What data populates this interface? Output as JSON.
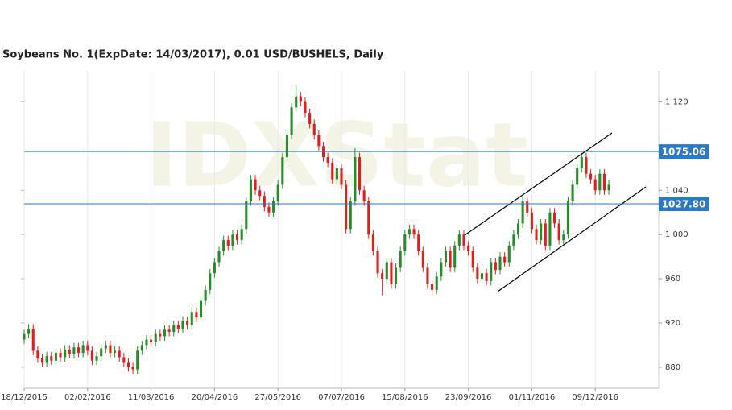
{
  "chart_data": {
    "type": "candlestick",
    "title": "Soybeans  No. 1(ExpDate: 14/03/2017), 0.01 USD/BUSHELS, Daily",
    "watermark": "IDXStat",
    "up_color": "#2a8a2a",
    "down_color": "#e01e1e",
    "xlim": [
      0,
      140
    ],
    "ylim": [
      861,
      1148
    ],
    "xticks": [
      {
        "value": 0,
        "label": "18/12/2015"
      },
      {
        "value": 14,
        "label": "02/02/2016"
      },
      {
        "value": 28,
        "label": "11/03/2016"
      },
      {
        "value": 42,
        "label": "20/04/2016"
      },
      {
        "value": 56,
        "label": "27/05/2016"
      },
      {
        "value": 70,
        "label": "07/07/2016"
      },
      {
        "value": 84,
        "label": "15/08/2016"
      },
      {
        "value": 98,
        "label": "23/09/2016"
      },
      {
        "value": 112,
        "label": "01/11/2016"
      },
      {
        "value": 126,
        "label": "09/12/2016"
      }
    ],
    "yticks": [
      880,
      920,
      960,
      {
        "value": 1000,
        "label": "1 000"
      },
      {
        "value": 1040,
        "label": "1 040"
      },
      {
        "value": 1120,
        "label": "1 120"
      }
    ],
    "hlines": [
      {
        "value": 1075.06,
        "color": "#2a78c6"
      },
      {
        "value": 1027.8,
        "label": "1027.80",
        "color": "#2a78c6"
      }
    ],
    "open": [
      905,
      910,
      915,
      895,
      888,
      884,
      890,
      886,
      893,
      889,
      896,
      892,
      898,
      893,
      900,
      895,
      886,
      890,
      897,
      900,
      893,
      895,
      889,
      884,
      880,
      878,
      895,
      900,
      905,
      903,
      910,
      908,
      914,
      912,
      918,
      915,
      922,
      918,
      930,
      925,
      940,
      950,
      965,
      975,
      985,
      995,
      990,
      1000,
      995,
      1005,
      1030,
      1050,
      1040,
      1035,
      1025,
      1020,
      1030,
      1045,
      1070,
      1090,
      1115,
      1125,
      1120,
      1110,
      1100,
      1090,
      1080,
      1070,
      1065,
      1050,
      1060,
      1045,
      1005,
      1030,
      1070,
      1040,
      1030,
      1000,
      985,
      965,
      960,
      975,
      955,
      970,
      985,
      1000,
      1005,
      1000,
      985,
      970,
      955,
      950,
      962,
      975,
      985,
      970,
      990,
      1000,
      990,
      985,
      970,
      960,
      965,
      958,
      975,
      968,
      980,
      975,
      990,
      1000,
      1010,
      1030,
      1020,
      1005,
      995,
      1010,
      990,
      1020,
      1010,
      995,
      1000,
      1030,
      1045,
      1060,
      1070,
      1055,
      1050,
      1040,
      1055,
      1040
    ],
    "high": [
      914,
      919,
      919,
      899,
      892,
      894,
      894,
      897,
      897,
      900,
      900,
      902,
      902,
      904,
      904,
      899,
      894,
      901,
      904,
      904,
      899,
      899,
      893,
      888,
      884,
      899,
      904,
      909,
      909,
      914,
      914,
      918,
      918,
      922,
      922,
      926,
      926,
      934,
      934,
      944,
      954,
      969,
      979,
      989,
      999,
      999,
      1004,
      1004,
      1009,
      1034,
      1054,
      1054,
      1044,
      1039,
      1029,
      1034,
      1049,
      1074,
      1094,
      1119,
      1135,
      1129,
      1124,
      1114,
      1104,
      1094,
      1084,
      1074,
      1069,
      1064,
      1064,
      1049,
      1034,
      1078,
      1074,
      1044,
      1034,
      1004,
      989,
      969,
      979,
      979,
      974,
      989,
      1004,
      1009,
      1009,
      1004,
      989,
      974,
      959,
      966,
      979,
      989,
      989,
      994,
      1004,
      1004,
      994,
      989,
      974,
      969,
      969,
      979,
      979,
      984,
      984,
      994,
      1004,
      1014,
      1034,
      1034,
      1024,
      1009,
      1014,
      1014,
      1024,
      1024,
      1014,
      1004,
      1034,
      1049,
      1064,
      1074,
      1074,
      1059,
      1054,
      1059,
      1059,
      1049
    ],
    "low": [
      901,
      906,
      891,
      884,
      880,
      880,
      882,
      882,
      885,
      885,
      888,
      888,
      889,
      889,
      891,
      882,
      882,
      886,
      893,
      889,
      889,
      885,
      880,
      876,
      874,
      874,
      891,
      896,
      899,
      899,
      904,
      904,
      908,
      908,
      911,
      911,
      914,
      914,
      921,
      921,
      936,
      946,
      961,
      971,
      981,
      986,
      986,
      991,
      991,
      1001,
      1026,
      1036,
      1031,
      1021,
      1016,
      1016,
      1026,
      1041,
      1066,
      1086,
      1111,
      1116,
      1106,
      1096,
      1086,
      1076,
      1066,
      1061,
      1046,
      1046,
      1041,
      1001,
      1001,
      1026,
      1036,
      1026,
      996,
      981,
      961,
      945,
      956,
      951,
      951,
      966,
      981,
      996,
      996,
      981,
      966,
      951,
      944,
      946,
      958,
      971,
      966,
      966,
      986,
      986,
      981,
      966,
      956,
      956,
      954,
      954,
      964,
      964,
      971,
      971,
      986,
      996,
      1006,
      1016,
      1001,
      991,
      991,
      986,
      986,
      1006,
      991,
      991,
      996,
      1026,
      1041,
      1056,
      1051,
      1046,
      1036,
      1036,
      1036,
      1036
    ],
    "close": [
      910,
      915,
      895,
      888,
      884,
      890,
      886,
      893,
      889,
      896,
      892,
      898,
      893,
      900,
      895,
      886,
      890,
      897,
      900,
      893,
      895,
      889,
      884,
      880,
      878,
      895,
      900,
      905,
      903,
      910,
      908,
      914,
      912,
      918,
      915,
      922,
      918,
      930,
      925,
      940,
      950,
      965,
      975,
      985,
      995,
      990,
      1000,
      995,
      1005,
      1030,
      1050,
      1040,
      1035,
      1025,
      1020,
      1030,
      1045,
      1070,
      1090,
      1115,
      1125,
      1120,
      1110,
      1100,
      1090,
      1080,
      1070,
      1065,
      1050,
      1060,
      1045,
      1005,
      1030,
      1070,
      1040,
      1030,
      1000,
      985,
      965,
      960,
      975,
      955,
      970,
      985,
      1000,
      1005,
      1000,
      985,
      970,
      955,
      950,
      962,
      975,
      985,
      970,
      990,
      1000,
      990,
      985,
      970,
      960,
      965,
      958,
      975,
      968,
      980,
      975,
      990,
      1000,
      1010,
      1030,
      1020,
      1005,
      995,
      1010,
      990,
      1020,
      1010,
      995,
      1000,
      1030,
      1045,
      1060,
      1070,
      1055,
      1050,
      1040,
      1055,
      1040,
      1045
    ]
  }
}
